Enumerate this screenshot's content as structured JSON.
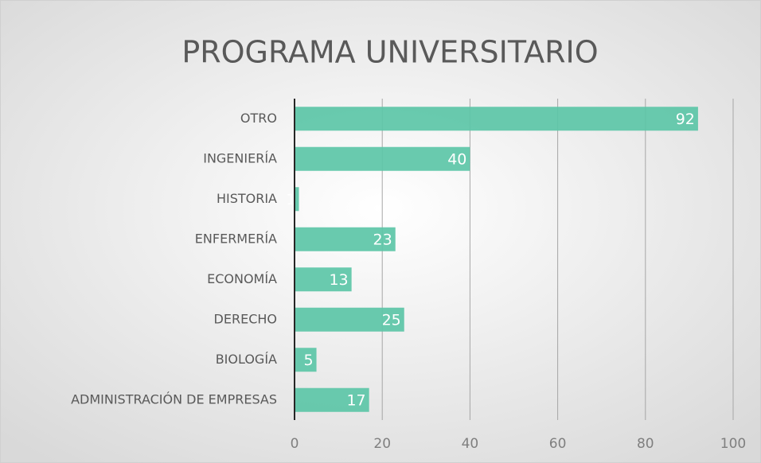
{
  "chart_data": {
    "type": "bar",
    "orientation": "horizontal",
    "title": "PROGRAMA UNIVERSITARIO",
    "categories": [
      "OTRO",
      "INGENIERÍA",
      "HISTORIA",
      "ENFERMERÍA",
      "ECONOMÍA",
      "DERECHO",
      "BIOLOGÍA",
      "ADMINISTRACIÓN DE EMPRESAS"
    ],
    "values": [
      92,
      40,
      1,
      23,
      13,
      25,
      5,
      17
    ],
    "color": "#5cc6a7",
    "xlim": [
      0,
      100
    ],
    "xticks": [
      0,
      20,
      40,
      60,
      80,
      100
    ],
    "grid": true
  }
}
